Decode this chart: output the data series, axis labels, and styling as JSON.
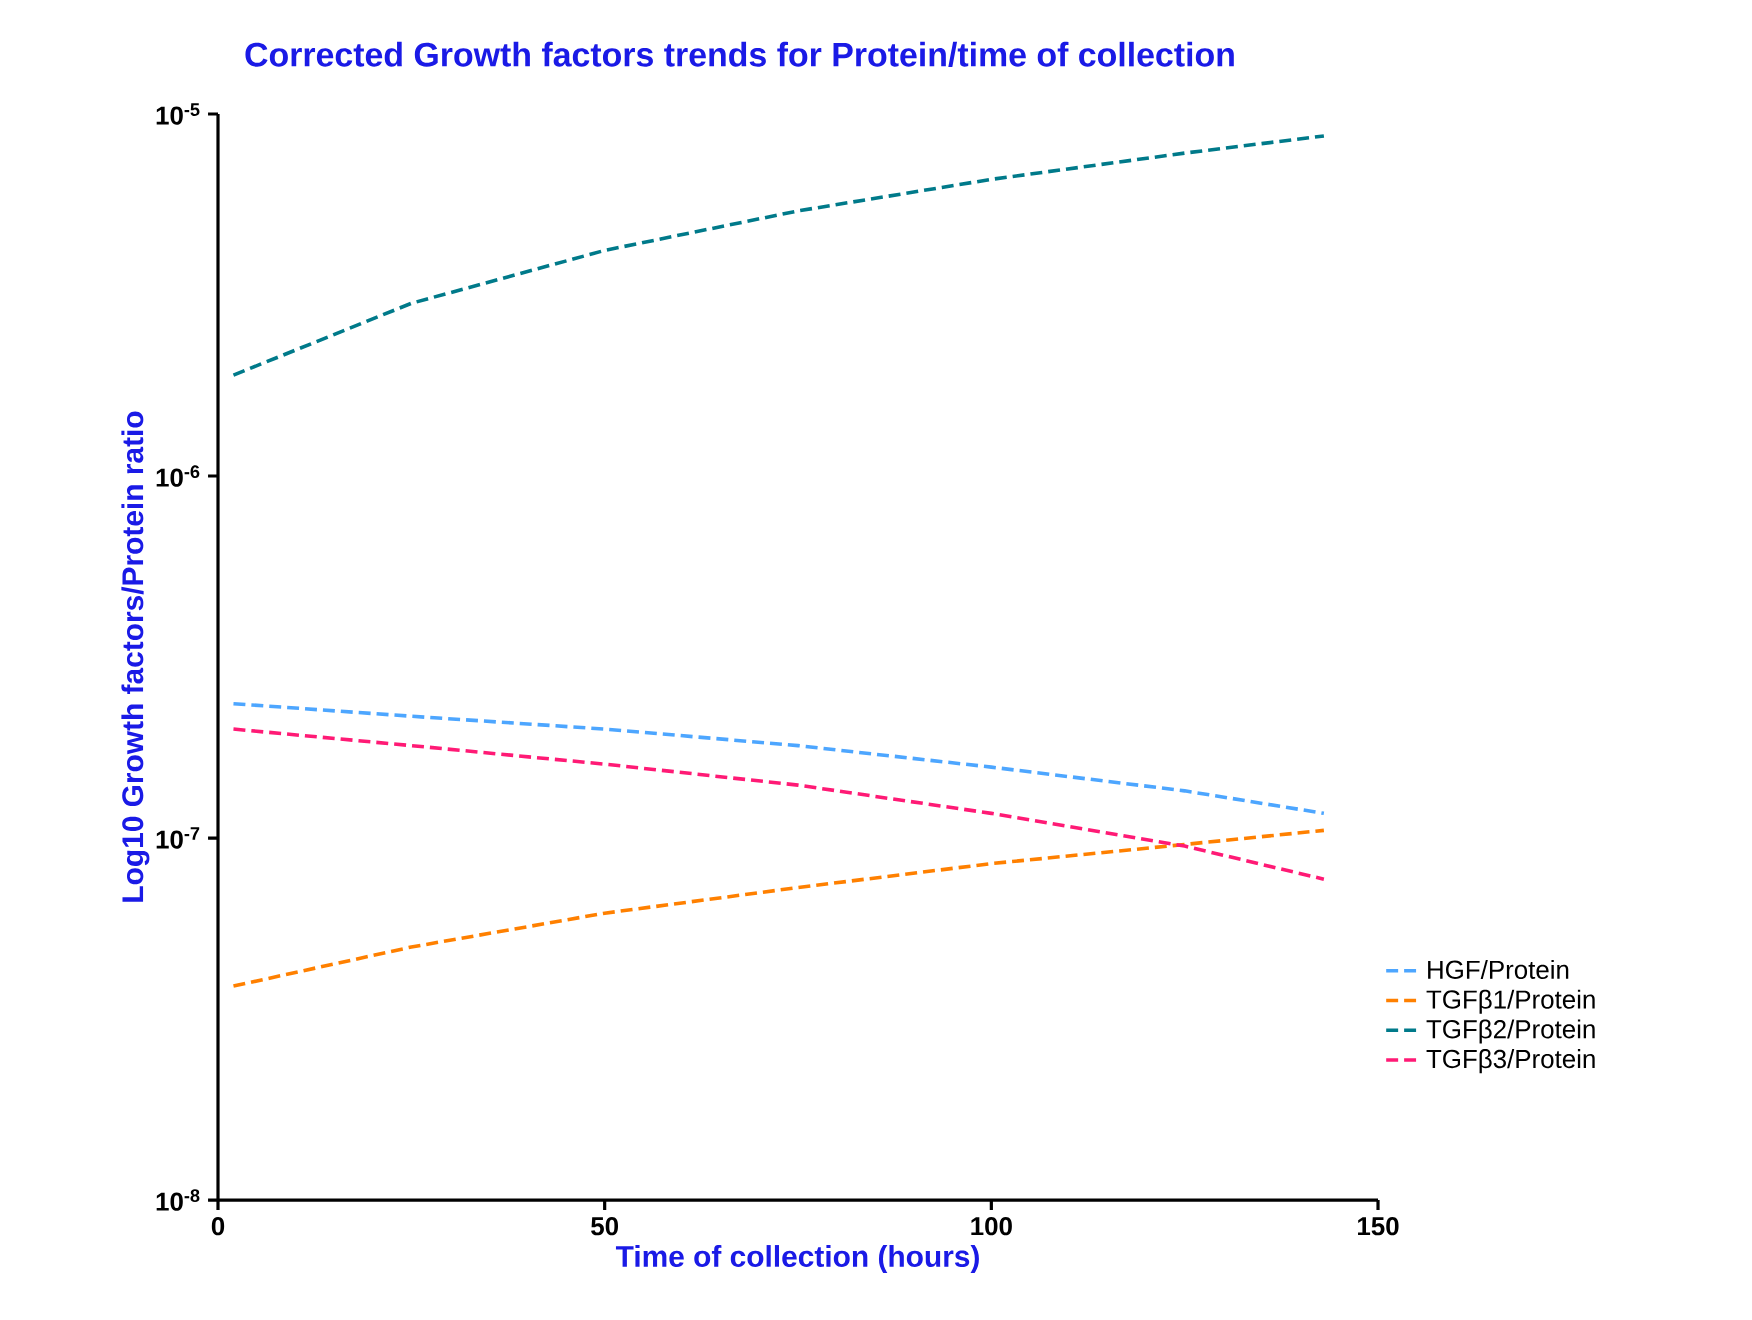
{
  "chart_data": {
    "type": "line",
    "title": "Corrected Growth factors trends for Protein/time of collection",
    "xlabel": "Time of collection (hours)",
    "ylabel": "Log10 Growth factors/Protein ratio",
    "log": "y",
    "line_style": "dashed",
    "legend": "right",
    "xlim": [
      0,
      150
    ],
    "xticks": [
      0,
      50,
      100,
      150
    ],
    "ylim": [
      1e-08,
      1e-05
    ],
    "yticks": [
      {
        "value": 1e-08,
        "label": "10$^{-8}$"
      },
      {
        "value": 1e-07,
        "label": "10$^{-7}$"
      },
      {
        "value": 1e-06,
        "label": "10$^{-6}$"
      },
      {
        "value": 1e-05,
        "label": "10$^{-5}$"
      }
    ],
    "x": [
      2,
      25,
      50,
      75,
      100,
      125,
      143
    ],
    "series": [
      {
        "name": "HGF/Protein",
        "color": "#4da6ff",
        "values": [
          2.35e-07,
          2.17e-07,
          2e-07,
          1.8e-07,
          1.57e-07,
          1.35e-07,
          1.17e-07
        ]
      },
      {
        "name": "TGFβ1/Protein",
        "color": "#ff8000",
        "values": [
          3.9e-08,
          5e-08,
          6.2e-08,
          7.3e-08,
          8.5e-08,
          9.6e-08,
          1.05e-07
        ]
      },
      {
        "name": "TGFβ2/Protein",
        "color": "#007a8a",
        "values": [
          1.9e-06,
          3e-06,
          4.2e-06,
          5.4e-06,
          6.6e-06,
          7.8e-06,
          8.7e-06
        ]
      },
      {
        "name": "TGFβ3/Protein",
        "color": "#ff1a75",
        "values": [
          2e-07,
          1.8e-07,
          1.6e-07,
          1.4e-07,
          1.17e-07,
          9.5e-08,
          7.7e-08
        ]
      }
    ]
  }
}
